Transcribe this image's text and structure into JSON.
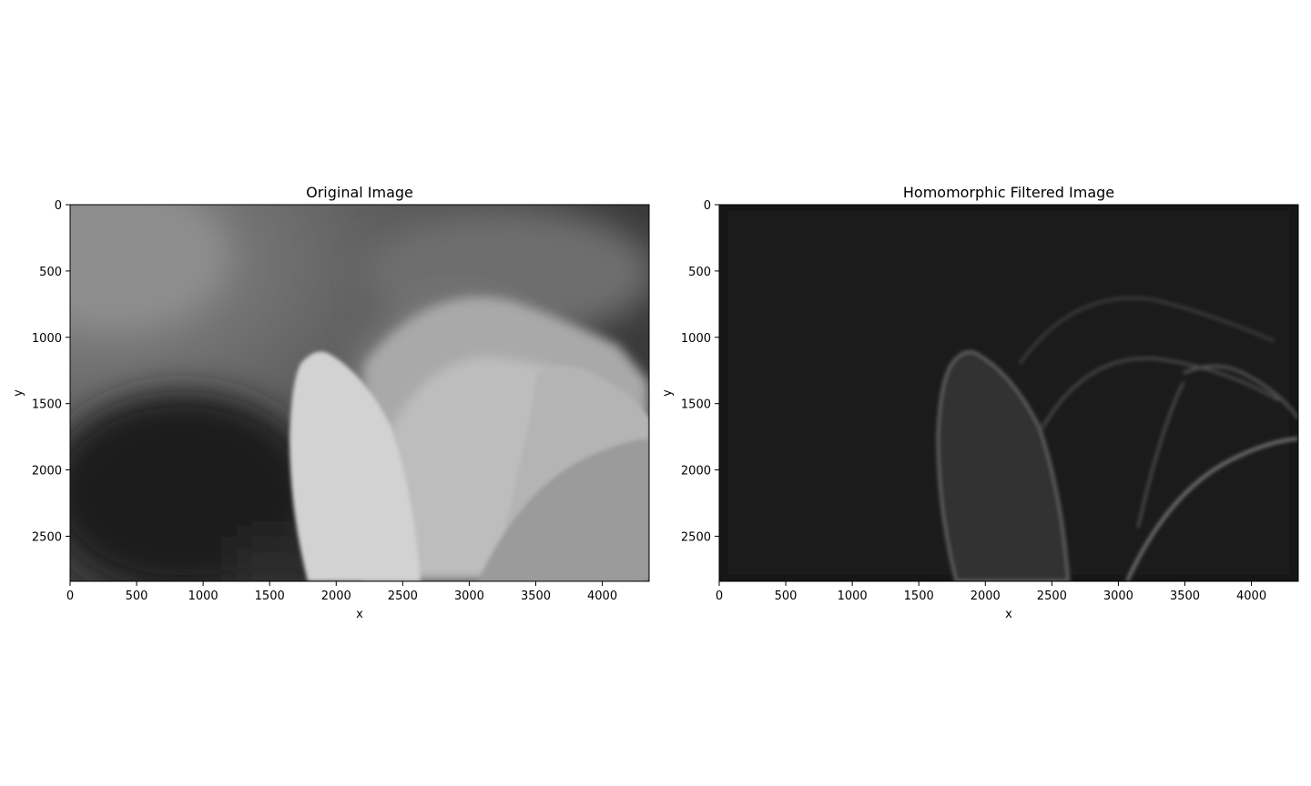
{
  "chart_data": [
    {
      "type": "image",
      "title": "Original Image",
      "xlabel": "x",
      "ylabel": "y",
      "xlim": [
        0,
        4352
      ],
      "ylim": [
        2840,
        0
      ],
      "xticks": [
        0,
        500,
        1000,
        1500,
        2000,
        2500,
        3000,
        3500,
        4000
      ],
      "yticks": [
        0,
        500,
        1000,
        1500,
        2000,
        2500
      ],
      "colormap": "gray"
    },
    {
      "type": "image",
      "title": "Homomorphic Filtered Image",
      "xlabel": "x",
      "ylabel": "y",
      "xlim": [
        0,
        4352
      ],
      "ylim": [
        2840,
        0
      ],
      "xticks": [
        0,
        500,
        1000,
        1500,
        2000,
        2500,
        3000,
        3500,
        4000
      ],
      "yticks": [
        0,
        500,
        1000,
        1500,
        2000,
        2500
      ],
      "colormap": "gray"
    }
  ]
}
